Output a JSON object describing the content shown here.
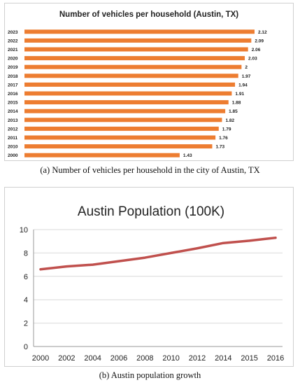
{
  "captions": {
    "a_tag": "(a)",
    "a_text": "Number of vehicles per household in the city of Austin, TX",
    "b_tag": "(b)",
    "b_text": "Austin population growth"
  },
  "colors": {
    "bar": "#ED7D31",
    "line": "#C0504D",
    "grid": "#d9d9d9"
  },
  "chart_data": [
    {
      "type": "bar",
      "orientation": "horizontal",
      "title": "Number of vehicles per household (Austin, TX)",
      "categories": [
        "2023",
        "2022",
        "2021",
        "2020",
        "2019",
        "2018",
        "2017",
        "2016",
        "2015",
        "2014",
        "2013",
        "2012",
        "2011",
        "2010",
        "2000"
      ],
      "values": [
        2.12,
        2.09,
        2.06,
        2.03,
        2,
        1.97,
        1.94,
        1.91,
        1.88,
        1.85,
        1.82,
        1.79,
        1.76,
        1.73,
        1.43
      ],
      "value_labels": [
        "2.12",
        "2.09",
        "2.06",
        "2.03",
        "2",
        "1.97",
        "1.94",
        "1.91",
        "1.88",
        "1.85",
        "1.82",
        "1.79",
        "1.76",
        "1.73",
        "1.43"
      ],
      "grid": false,
      "legend": "none"
    },
    {
      "type": "line",
      "title": "Austin Population (100K)",
      "categories": [
        "2000",
        "2002",
        "2004",
        "2006",
        "2008",
        "2010",
        "2012",
        "2014",
        "2015",
        "2016"
      ],
      "values": [
        6.6,
        6.85,
        7.0,
        7.3,
        7.6,
        8.0,
        8.4,
        8.85,
        9.05,
        9.3
      ],
      "ylim": [
        0,
        10
      ],
      "yticks": [
        "0",
        "2",
        "4",
        "6",
        "8",
        "10"
      ],
      "grid": true,
      "legend": "none"
    }
  ]
}
